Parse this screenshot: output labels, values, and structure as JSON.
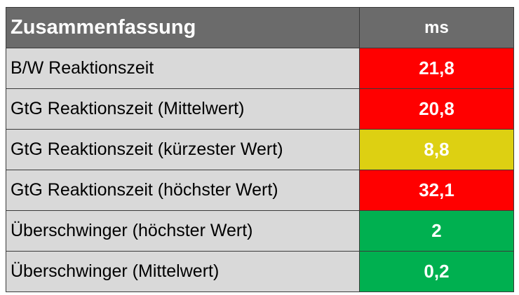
{
  "table": {
    "header": [
      "Zusammenfassung",
      "ms"
    ],
    "rows": [
      {
        "label": "B/W Reaktionszeit",
        "value": "21,8",
        "color": "#ff0000"
      },
      {
        "label": "GtG Reaktionszeit (Mittelwert)",
        "value": "20,8",
        "color": "#ff0000"
      },
      {
        "label": "GtG Reaktionszeit (kürzester Wert)",
        "value": "8,8",
        "color": "#ddd012"
      },
      {
        "label": "GtG Reaktionszeit (höchster Wert)",
        "value": "32,1",
        "color": "#ff0000"
      },
      {
        "label": "Überschwinger (höchster Wert)",
        "value": "2",
        "color": "#00b050"
      },
      {
        "label": "Überschwinger (Mittelwert)",
        "value": "0,2",
        "color": "#00b050"
      }
    ]
  }
}
